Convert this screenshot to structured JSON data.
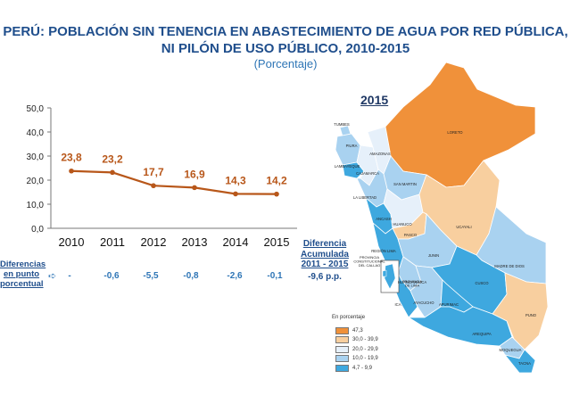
{
  "title_line1": "PERÚ: POBLACIÓN SIN TENENCIA EN ABASTECIMIENTO DE AGUA POR RED PÚBLICA,",
  "title_line2": "NI PILÓN DE USO PÚBLICO, 2010-2015",
  "subtitle": "(Porcentaje)",
  "chart_data": {
    "type": "line",
    "x": [
      "2010",
      "2011",
      "2012",
      "2013",
      "2014",
      "2015"
    ],
    "series": [
      {
        "values": [
          23.8,
          23.2,
          17.7,
          16.9,
          14.3,
          14.2
        ],
        "color": "#b8571a"
      }
    ],
    "value_labels": [
      "23,8",
      "23,2",
      "17,7",
      "16,9",
      "14,3",
      "14,2"
    ],
    "ylim": [
      0,
      50
    ],
    "yticks": [
      "0,0",
      "10,0",
      "20,0",
      "30,0",
      "40,0",
      "50,0"
    ],
    "grid": false
  },
  "differences": {
    "label_lines": [
      "Diferencias",
      "en punto",
      "porcentual"
    ],
    "values": [
      "-",
      "-0,6",
      "-5,5",
      "-0,8",
      "-2,6",
      "-0,1"
    ],
    "accumulated_label_lines": [
      "Diferencia",
      "Acumulada",
      "2011 - 2015"
    ],
    "accumulated_value": "-9,6 p.p."
  },
  "map": {
    "year": "2015",
    "legend_title": "En porcentaje",
    "legend": [
      {
        "label": "47,3",
        "color": "#f0913a"
      },
      {
        "label": "30,0 - 39,9",
        "color": "#f8cf9f"
      },
      {
        "label": "20,0 - 29,9",
        "color": "#e6f0fa"
      },
      {
        "label": "10,0 - 19,9",
        "color": "#a9d2f0"
      },
      {
        "label": "4,7 - 9,9",
        "color": "#3ea8df"
      }
    ],
    "regions": [
      {
        "name": "TUMBES",
        "color": "#a9d2f0"
      },
      {
        "name": "PIURA",
        "color": "#a9d2f0"
      },
      {
        "name": "LAMBAYEQUE",
        "color": "#3ea8df"
      },
      {
        "name": "AMAZONAS",
        "color": "#e6f0fa"
      },
      {
        "name": "CAJAMARCA",
        "color": "#e6f0fa"
      },
      {
        "name": "LORETO",
        "color": "#f0913a"
      },
      {
        "name": "SAN MARTIN",
        "color": "#a9d2f0"
      },
      {
        "name": "LA LIBERTAD",
        "color": "#a9d2f0"
      },
      {
        "name": "ANCASH",
        "color": "#3ea8df"
      },
      {
        "name": "HUANUCO",
        "color": "#e6f0fa"
      },
      {
        "name": "UCAYALI",
        "color": "#f8cf9f"
      },
      {
        "name": "PASCO",
        "color": "#f8cf9f"
      },
      {
        "name": "REGIÓN LIMA",
        "color": "#3ea8df"
      },
      {
        "name": "JUNIN",
        "color": "#a9d2f0"
      },
      {
        "name": "MADRE DE DIOS",
        "color": "#a9d2f0"
      },
      {
        "name": "HUANCAVELICA",
        "color": "#a9d2f0"
      },
      {
        "name": "CUSCO",
        "color": "#3ea8df"
      },
      {
        "name": "ICA",
        "color": "#3ea8df"
      },
      {
        "name": "AYACUCHO",
        "color": "#a9d2f0"
      },
      {
        "name": "APURIMAC",
        "color": "#3ea8df"
      },
      {
        "name": "PUNO",
        "color": "#f8cf9f"
      },
      {
        "name": "AREQUIPA",
        "color": "#3ea8df"
      },
      {
        "name": "MOQUEGUA",
        "color": "#a9d2f0"
      },
      {
        "name": "TACNA",
        "color": "#3ea8df"
      },
      {
        "name": "PROVINCIA CONSTITUCIONAL DEL CALLAO",
        "color": "#3ea8df"
      },
      {
        "name": "PROVINCIA DE LIMA",
        "color": "#3ea8df"
      }
    ]
  }
}
